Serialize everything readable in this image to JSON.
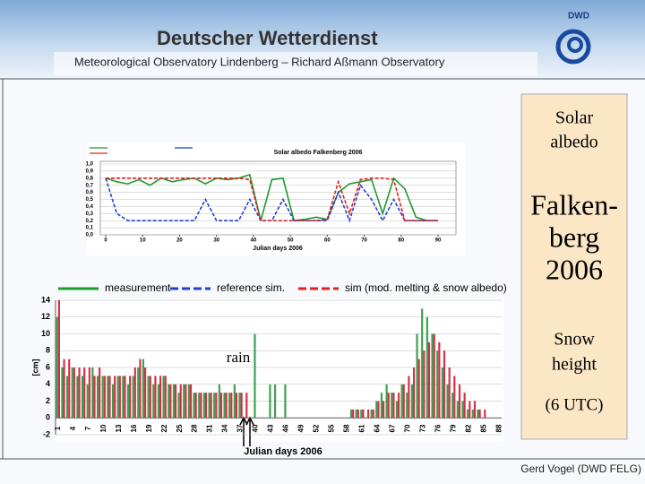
{
  "header": {
    "title": "Deutscher Wetterdienst",
    "logo": "DWD",
    "subtitle": "Meteorological Observatory Lindenberg – Richard Aßmann Observatory"
  },
  "side": {
    "top": [
      "Solar",
      "albedo"
    ],
    "middle": [
      "Falken-",
      "berg",
      "2006"
    ],
    "bottom": [
      "Snow",
      "height"
    ],
    "note": "(6 UTC)"
  },
  "footer": "Gerd Vogel (DWD FELG)",
  "chart_data": [
    {
      "type": "line",
      "title": "Solar albedo Falkenberg 2006",
      "x_label": "Julian days 2006",
      "x": [
        0,
        3,
        6,
        9,
        12,
        15,
        18,
        21,
        24,
        27,
        30,
        33,
        36,
        39,
        42,
        45,
        48,
        51,
        54,
        57,
        60,
        63,
        66,
        69,
        72,
        75,
        78,
        81,
        84,
        87,
        90
      ],
      "xlim": [
        0,
        90
      ],
      "xticks": [
        0,
        10,
        20,
        30,
        40,
        50,
        60,
        70,
        80,
        90
      ],
      "ylim": [
        0,
        1
      ],
      "yticks": [
        {
          "value": 0,
          "label": "0,0"
        },
        {
          "value": 0.1,
          "label": "0,1"
        },
        {
          "value": 0.2,
          "label": "0,2"
        },
        {
          "value": 0.3,
          "label": "0,3"
        },
        {
          "value": 0.4,
          "label": "0,4"
        },
        {
          "value": 0.5,
          "label": "0,5"
        },
        {
          "value": 0.6,
          "label": "0,6"
        },
        {
          "value": 0.7,
          "label": "0,7"
        },
        {
          "value": 0.8,
          "label": "0,8"
        },
        {
          "value": 0.9,
          "label": "0,9"
        },
        {
          "value": 1,
          "label": "1,0"
        }
      ],
      "grid": true,
      "series": [
        {
          "name": "measurement",
          "color": "#1f9a2e",
          "dash": false,
          "values": [
            0.8,
            0.75,
            0.72,
            0.78,
            0.7,
            0.8,
            0.75,
            0.78,
            0.8,
            0.72,
            0.8,
            0.78,
            0.8,
            0.85,
            0.2,
            0.78,
            0.8,
            0.2,
            0.22,
            0.25,
            0.22,
            0.6,
            0.72,
            0.75,
            0.78,
            0.3,
            0.8,
            0.65,
            0.25,
            0.2,
            0.2
          ]
        },
        {
          "name": "reference sim.",
          "color": "#2040d0",
          "dash": true,
          "values": [
            0.8,
            0.3,
            0.2,
            0.2,
            0.2,
            0.2,
            0.2,
            0.2,
            0.2,
            0.5,
            0.2,
            0.2,
            0.2,
            0.5,
            0.2,
            0.2,
            0.5,
            0.2,
            0.2,
            0.2,
            0.2,
            0.6,
            0.2,
            0.7,
            0.5,
            0.2,
            0.5,
            0.2,
            0.2,
            0.2,
            0.2
          ]
        },
        {
          "name": "sim (mod. melting & snow albedo)",
          "color": "#e02020",
          "dash": true,
          "values": [
            0.8,
            0.8,
            0.8,
            0.8,
            0.8,
            0.8,
            0.8,
            0.8,
            0.8,
            0.8,
            0.8,
            0.8,
            0.8,
            0.78,
            0.2,
            0.2,
            0.2,
            0.2,
            0.2,
            0.2,
            0.22,
            0.75,
            0.3,
            0.78,
            0.8,
            0.8,
            0.78,
            0.2,
            0.2,
            0.2,
            0.2
          ]
        }
      ]
    },
    {
      "type": "bar",
      "x_label": "Julian days 2006",
      "y_label": "[cm]",
      "annotation": "rain",
      "categories": [
        "1",
        null,
        null,
        "4",
        null,
        null,
        "7",
        null,
        null,
        "10",
        null,
        null,
        "13",
        null,
        null,
        "16",
        null,
        null,
        "19",
        null,
        null,
        "22",
        null,
        null,
        "25",
        null,
        null,
        "28",
        null,
        null,
        "31",
        null,
        null,
        "34",
        null,
        null,
        "37",
        null,
        null,
        "40",
        null,
        null,
        "43",
        null,
        null,
        "46",
        null,
        null,
        "49",
        null,
        null,
        "52",
        null,
        null,
        "55",
        null,
        null,
        "58",
        null,
        null,
        "61",
        null,
        null,
        "64",
        null,
        null,
        "67",
        null,
        null,
        "70",
        null,
        null,
        "73",
        null,
        null,
        "76",
        null,
        null,
        "79",
        null,
        null,
        "82",
        null,
        null,
        "85",
        null,
        null,
        "88"
      ],
      "ylim": [
        -2,
        14
      ],
      "yticks": [
        -2,
        0,
        2,
        4,
        6,
        8,
        10,
        12,
        14
      ],
      "grid": true,
      "series": [
        {
          "color": "#3aa04a",
          "values": [
            12,
            6,
            5,
            6,
            5,
            5,
            4,
            6,
            5,
            5,
            5,
            4,
            5,
            5,
            4,
            5,
            6,
            7,
            5,
            4,
            4,
            5,
            4,
            4,
            3,
            4,
            4,
            3,
            3,
            3,
            3,
            3,
            4,
            3,
            3,
            4,
            3,
            0,
            0,
            10,
            0,
            0,
            4,
            4,
            0,
            4,
            0,
            0,
            0,
            0,
            0,
            0,
            0,
            0,
            0,
            0,
            0,
            0,
            1,
            1,
            1,
            0,
            1,
            2,
            3,
            4,
            3,
            2,
            4,
            3,
            4,
            10,
            13,
            12,
            10,
            8,
            6,
            4,
            3,
            2,
            2,
            1,
            1,
            1,
            0,
            0,
            0,
            0
          ]
        },
        {
          "color": "#d0304a",
          "values": [
            14,
            7,
            7,
            6,
            6,
            6,
            6,
            5,
            6,
            5,
            5,
            5,
            5,
            5,
            5,
            6,
            7,
            6,
            5,
            5,
            5,
            5,
            4,
            4,
            4,
            4,
            4,
            3,
            3,
            3,
            3,
            3,
            3,
            3,
            3,
            3,
            3,
            3,
            0,
            0,
            0,
            0,
            0,
            0,
            0,
            0,
            0,
            0,
            0,
            0,
            0,
            0,
            0,
            0,
            0,
            0,
            0,
            0,
            1,
            1,
            1,
            1,
            1,
            2,
            2,
            3,
            3,
            3,
            4,
            5,
            6,
            7,
            8,
            9,
            10,
            9,
            8,
            6,
            5,
            4,
            3,
            2,
            2,
            1,
            1,
            0,
            0,
            0
          ]
        }
      ]
    }
  ]
}
